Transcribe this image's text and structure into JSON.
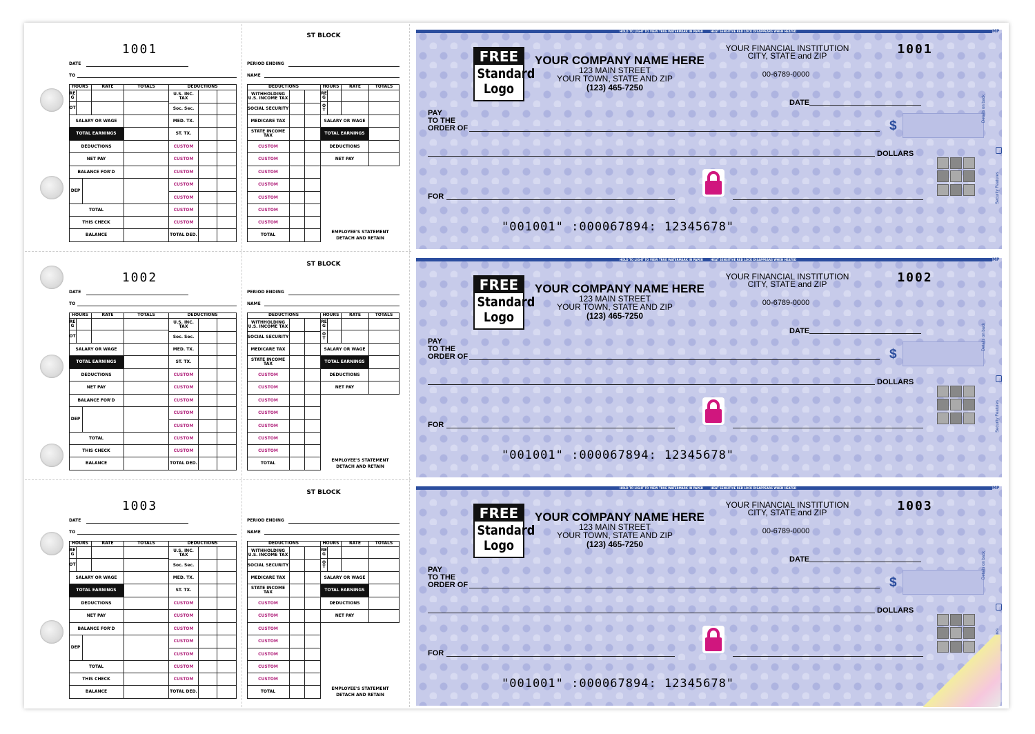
{
  "check_numbers": [
    "1001",
    "1002",
    "1003"
  ],
  "stub_left": {
    "date": "DATE",
    "to": "TO",
    "headers": [
      "HOURS",
      "RATE",
      "TOTALS",
      "DEDUCTIONS"
    ],
    "earnings_rows": [
      "REG",
      "OT",
      "SALARY OR WAGE",
      "TOTAL EARNINGS",
      "DEDUCTIONS",
      "NET PAY",
      "BALANCE FOR'D",
      "DEP",
      "TOTAL",
      "THIS CHECK",
      "BALANCE"
    ],
    "deduction_rows": [
      "U.S. INC. TAX",
      "Soc. Sec.",
      "MED. TX.",
      "ST. TX.",
      "CUSTOM",
      "CUSTOM",
      "CUSTOM",
      "CUSTOM",
      "CUSTOM",
      "CUSTOM",
      "CUSTOM",
      "TOTAL DED."
    ]
  },
  "stub_middle": {
    "title": "ST BLOCK",
    "period_ending": "PERIOD ENDING",
    "name": "NAME",
    "deductions_header": "DEDUCTIONS",
    "deduction_rows": [
      "WITHHOLDING U.S. INCOME TAX",
      "SOCIAL SECURITY",
      "MEDICARE TAX",
      "STATE INCOME TAX",
      "CUSTOM",
      "CUSTOM",
      "CUSTOM",
      "CUSTOM",
      "CUSTOM",
      "CUSTOM",
      "CUSTOM",
      "TOTAL"
    ],
    "earnings_headers": [
      "HOURS",
      "RATE",
      "TOTALS"
    ],
    "earnings_rows": [
      "REG",
      "OT",
      "SALARY OR WAGE",
      "TOTAL EARNINGS",
      "DEDUCTIONS",
      "NET PAY"
    ],
    "footer": [
      "EMPLOYEE'S STATEMENT",
      "DETACH AND RETAIN"
    ]
  },
  "check": {
    "microtext": [
      "HOLD TO LIGHT TO VIEW TRUE WATERMARK IN PAPER",
      "HEAT SENSITIVE RED LOCK DISAPPEARS WHEN HEATED"
    ],
    "mp": "MP",
    "logo": [
      "FREE",
      "Standard",
      "Logo"
    ],
    "company": "YOUR COMPANY NAME HERE",
    "address": [
      "123 MAIN STREET",
      "YOUR TOWN, STATE AND ZIP"
    ],
    "phone": "(123) 465-7250",
    "bank": [
      "YOUR FINANCIAL INSTITUTION",
      "CITY, STATE and ZIP"
    ],
    "fraction": "00-6789-0000",
    "date": "DATE",
    "pay": [
      "PAY",
      "TO THE",
      "ORDER OF"
    ],
    "dollar_sign": "$",
    "dollars": "DOLLARS",
    "for": "FOR",
    "micr": "\"001001\" :000067894: 12345678\"",
    "side": [
      "Details on back",
      "Security Features"
    ]
  }
}
